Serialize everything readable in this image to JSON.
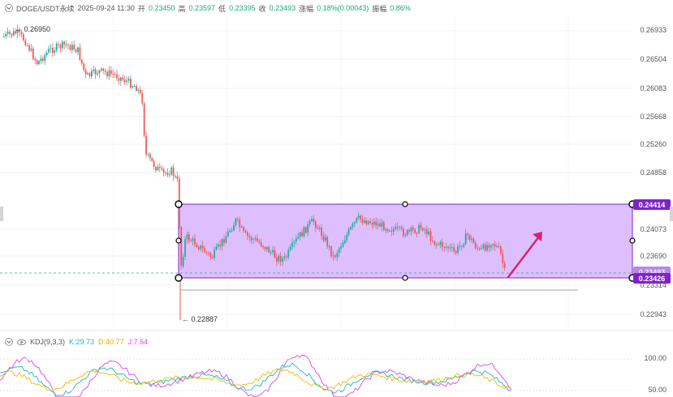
{
  "header": {
    "symbol": "DOGE/USDT永续",
    "datetime": "2025-09-24 11:30",
    "open_label": "开",
    "open": "0.23450",
    "high_label": "高",
    "high": "0.23597",
    "low_label": "低",
    "low": "0.23395",
    "close_label": "收",
    "close": "0.23493",
    "change_label": "涨幅",
    "change": "0.18%(0.00043)",
    "amp_label": "振幅",
    "amp": "0.86%"
  },
  "price_axis": [
    "0.26933",
    "0.26504",
    "0.26083",
    "0.25668",
    "0.25260",
    "0.24858",
    "0.24073",
    "0.23690",
    "0.23314",
    "0.22943"
  ],
  "tags": {
    "top": "0.24414",
    "mid": "0.23493",
    "bottom": "0.23426"
  },
  "annotations": {
    "high": "0.26950",
    "low": "0.22887"
  },
  "kdj": {
    "name": "KDJ(9,3,3)",
    "k_label": "K:29.73",
    "d_label": "D:40.77",
    "j_label": "J:7.64",
    "axis": [
      "100.00",
      "50.00"
    ]
  },
  "colors": {
    "up": "#26a69a",
    "down": "#ef5350",
    "box": "#7e22ce",
    "box_fill": "#d8b4fe",
    "arrow": "#d6246e",
    "k": "#1fb5c1",
    "d": "#f2b705",
    "j": "#d946ef"
  }
}
